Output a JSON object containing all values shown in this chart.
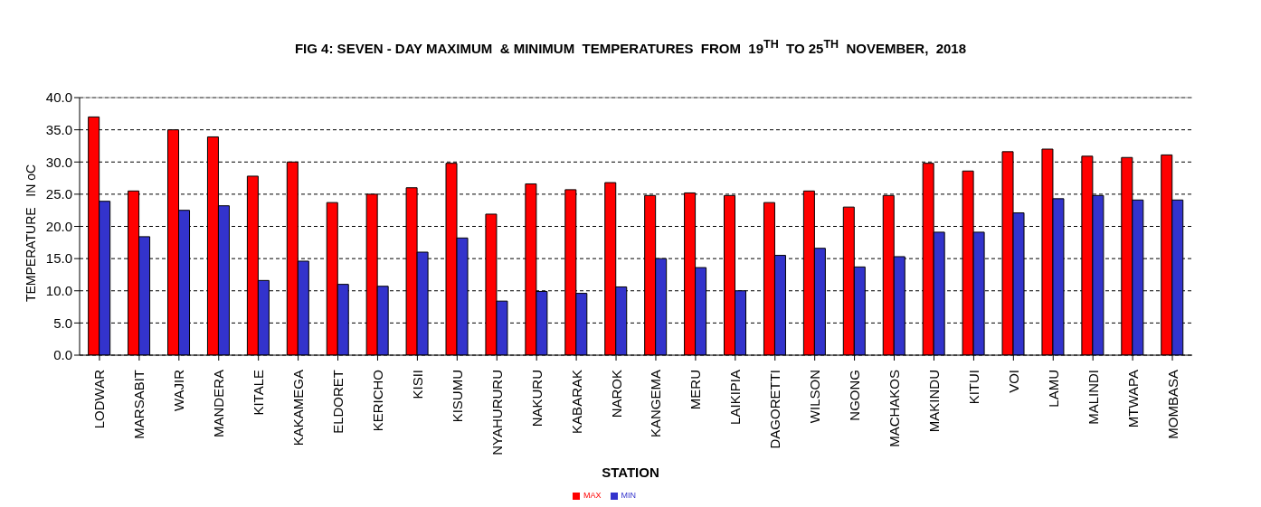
{
  "chart_data": {
    "type": "bar",
    "title": "FIG 4: SEVEN - DAY MAXIMUM  & MINIMUM  TEMPERATURES  FROM  19$^{TH}$  TO 25$^{TH}$  NOVEMBER,  2018",
    "xlabel": "STATION",
    "ylabel": "TEMPERATURE   IN oC",
    "categories": [
      "LODWAR",
      "MARSABIT",
      "WAJIR",
      "MANDERA",
      "KITALE",
      "KAKAMEGA",
      "ELDORET",
      "KERICHO",
      "KISII",
      "KISUMU",
      "NYAHURURU",
      "NAKURU",
      "KABARAK",
      "NAROK",
      "KANGEMA",
      "MERU",
      "LAIKIPIA",
      "DAGORETTI",
      "WILSON",
      "NGONG",
      "MACHAKOS",
      "MAKINDU",
      "KITUI",
      "VOI",
      "LAMU",
      "MALINDI",
      "MTWAPA",
      "MOMBASA"
    ],
    "series": [
      {
        "name": "MAX",
        "color": "#ff0000",
        "values": [
          37.0,
          25.5,
          35.0,
          33.9,
          27.8,
          30.0,
          23.7,
          25.0,
          26.0,
          29.8,
          21.9,
          26.6,
          25.7,
          26.8,
          24.8,
          25.2,
          24.8,
          23.7,
          25.5,
          23.0,
          24.8,
          29.8,
          28.6,
          31.6,
          32.0,
          30.9,
          30.7,
          31.1
        ]
      },
      {
        "name": "MIN",
        "color": "#3333cc",
        "values": [
          23.9,
          18.4,
          22.5,
          23.2,
          11.6,
          14.6,
          11.0,
          10.7,
          16.0,
          18.2,
          8.4,
          9.9,
          9.6,
          10.6,
          15.0,
          13.6,
          10.0,
          15.5,
          16.6,
          13.7,
          15.3,
          19.1,
          19.1,
          22.1,
          24.3,
          24.8,
          24.1,
          24.1
        ]
      }
    ],
    "ylim": [
      0,
      40
    ],
    "yticks": [
      {
        "value": 0,
        "label": "0.0"
      },
      {
        "value": 5,
        "label": "5.0"
      },
      {
        "value": 10,
        "label": "10.0"
      },
      {
        "value": 15,
        "label": "15.0"
      },
      {
        "value": 20,
        "label": "20.0"
      },
      {
        "value": 25,
        "label": "25.0"
      },
      {
        "value": 30,
        "label": "30.0"
      },
      {
        "value": 35,
        "label": "35.0"
      },
      {
        "value": 40,
        "label": "40.0"
      }
    ],
    "grid": "y",
    "legend": "bottom"
  }
}
